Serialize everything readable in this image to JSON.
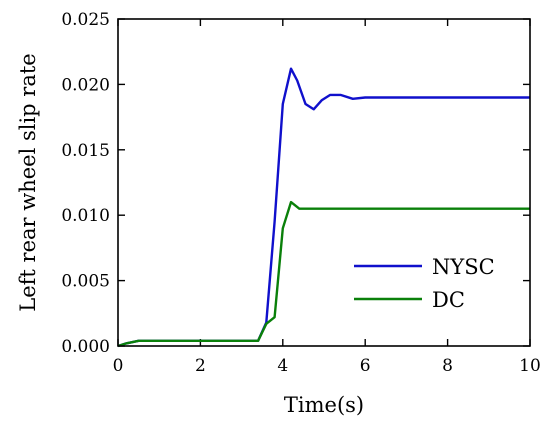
{
  "chart_data": {
    "type": "line",
    "title": "",
    "xlabel": "Time(s)",
    "ylabel": "Left rear wheel slip rate",
    "xlim": [
      0,
      10
    ],
    "ylim": [
      0,
      0.025
    ],
    "x_ticks": [
      "0",
      "2",
      "4",
      "6",
      "8",
      "10"
    ],
    "y_ticks": [
      "0.000",
      "0.005",
      "0.010",
      "0.015",
      "0.020",
      "0.025"
    ],
    "grid": false,
    "legend_position": "bottom-right",
    "series": [
      {
        "name": "NYSC",
        "color": "#1010cc",
        "x": [
          0,
          0.2,
          0.5,
          1.0,
          2.0,
          3.0,
          3.4,
          3.6,
          3.8,
          4.0,
          4.2,
          4.35,
          4.55,
          4.75,
          4.95,
          5.15,
          5.4,
          5.7,
          6.0,
          6.5,
          7.0,
          8.0,
          9.0,
          10.0
        ],
        "y": [
          0,
          0.0002,
          0.0004,
          0.0004,
          0.0004,
          0.0004,
          0.0004,
          0.0018,
          0.0095,
          0.0185,
          0.0212,
          0.0203,
          0.0185,
          0.0181,
          0.0188,
          0.0192,
          0.0192,
          0.0189,
          0.019,
          0.019,
          0.019,
          0.019,
          0.019,
          0.019
        ]
      },
      {
        "name": "DC",
        "color": "#0a800a",
        "x": [
          0,
          0.2,
          0.5,
          1.0,
          2.0,
          3.0,
          3.4,
          3.6,
          3.8,
          4.0,
          4.2,
          4.4,
          5.0,
          6.0,
          8.0,
          10.0
        ],
        "y": [
          0,
          0.0002,
          0.0004,
          0.0004,
          0.0004,
          0.0004,
          0.0004,
          0.0017,
          0.0022,
          0.009,
          0.011,
          0.0105,
          0.0105,
          0.0105,
          0.0105,
          0.0105
        ]
      }
    ]
  }
}
